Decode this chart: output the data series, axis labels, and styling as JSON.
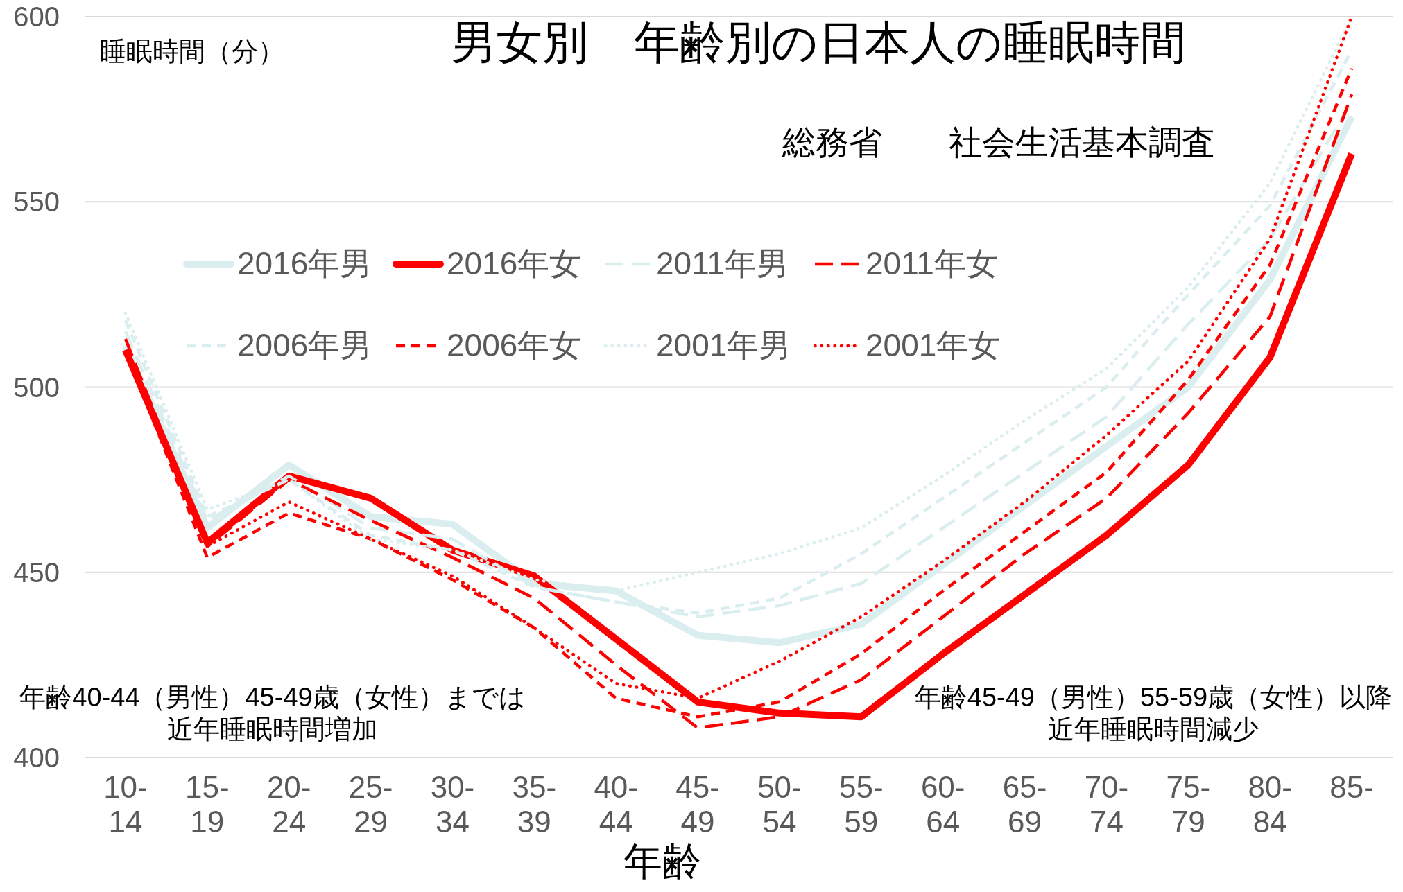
{
  "chart_data": {
    "type": "line",
    "title": "男女別　年齢別の日本人の睡眠時間",
    "subtitle": "総務省　　社会生活基本調査",
    "ylabel": "睡眠時間（分）",
    "xlabel": "年齢",
    "annotations": [
      "年齢40-44（男性）45-49歳（女性）までは近年睡眠時間増加",
      "年齢45-49（男性）55-59歳（女性）以降近年睡眠時間減少"
    ],
    "categories": [
      "10-14",
      "15-19",
      "20-24",
      "25-29",
      "30-34",
      "35-39",
      "40-44",
      "45-49",
      "50-54",
      "55-59",
      "60-64",
      "65-69",
      "70-74",
      "75-79",
      "80-84",
      "85-"
    ],
    "series": [
      {
        "name": "2016年男",
        "color": "#daeef0",
        "line_style": "solid",
        "values": [
          511,
          462,
          479,
          465,
          463,
          447,
          445,
          433,
          431,
          436,
          452,
          468,
          484,
          500,
          529,
          573
        ]
      },
      {
        "name": "2016年女",
        "color": "#ff0000",
        "line_style": "solid",
        "values": [
          510,
          458,
          476,
          470,
          456,
          449,
          432,
          415,
          412,
          411,
          428,
          444,
          460,
          479,
          508,
          563
        ]
      },
      {
        "name": "2011年男",
        "color": "#daeef0",
        "line_style": "dashed",
        "values": [
          515,
          464,
          476,
          462,
          459,
          446,
          442,
          438,
          441,
          447,
          462,
          477,
          492,
          517,
          540,
          577
        ]
      },
      {
        "name": "2011年女",
        "color": "#ff0000",
        "line_style": "dashed",
        "values": [
          513,
          457,
          475,
          464,
          454,
          443,
          425,
          408,
          411,
          421,
          438,
          455,
          470,
          493,
          519,
          579
        ]
      },
      {
        "name": "2006年男",
        "color": "#daeef0",
        "line_style": "dashed",
        "values": [
          518,
          465,
          475,
          460,
          456,
          446,
          442,
          439,
          443,
          455,
          470,
          485,
          500,
          525,
          549,
          591
        ]
      },
      {
        "name": "2006年女",
        "color": "#ff0000",
        "line_style": "dashed",
        "values": [
          510,
          454,
          466,
          459,
          448,
          435,
          416,
          411,
          415,
          428,
          445,
          461,
          477,
          502,
          533,
          586
        ]
      },
      {
        "name": "2001年男",
        "color": "#daeef0",
        "line_style": "dotted",
        "values": [
          520,
          467,
          475,
          459,
          456,
          448,
          445,
          450,
          455,
          462,
          476,
          491,
          505,
          527,
          555,
          600
        ]
      },
      {
        "name": "2001年女",
        "color": "#ff0000",
        "line_style": "dotted",
        "values": [
          509,
          457,
          469,
          459,
          449,
          435,
          420,
          416,
          426,
          438,
          453,
          469,
          487,
          507,
          540,
          600
        ]
      }
    ],
    "ylim": [
      400,
      600
    ],
    "yticks": [
      400,
      450,
      500,
      550,
      600
    ],
    "grid": "y",
    "legend": "top left"
  }
}
